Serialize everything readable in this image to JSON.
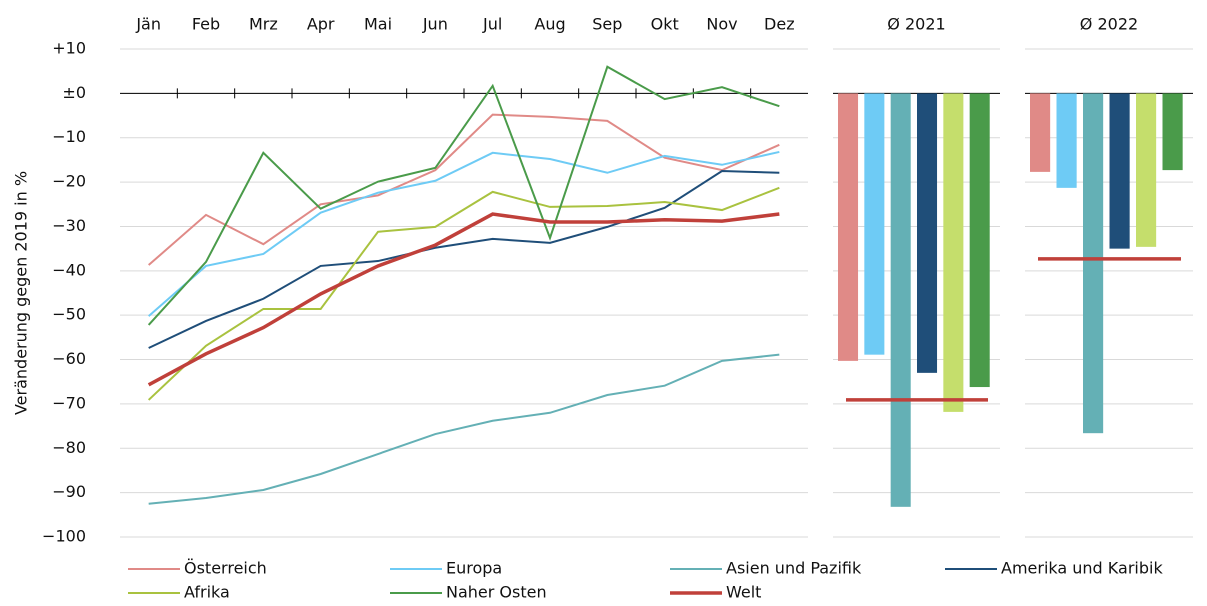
{
  "chart_data": [
    {
      "type": "line",
      "y_label": "Veränderung gegen 2019 in %",
      "categories": [
        "Jän",
        "Feb",
        "Mrz",
        "Apr",
        "Mai",
        "Jun",
        "Jul",
        "Aug",
        "Sep",
        "Okt",
        "Nov",
        "Dez"
      ],
      "ylim": [
        -100,
        10
      ],
      "yticks": [
        {
          "value": 10,
          "label": "+10"
        },
        {
          "value": 0,
          "label": "±0"
        },
        {
          "value": -10,
          "label": "−10"
        },
        {
          "value": -20,
          "label": "−20"
        },
        {
          "value": -30,
          "label": "−30"
        },
        {
          "value": -40,
          "label": "−40"
        },
        {
          "value": -50,
          "label": "−50"
        },
        {
          "value": -60,
          "label": "−60"
        },
        {
          "value": -70,
          "label": "−70"
        },
        {
          "value": -80,
          "label": "−80"
        },
        {
          "value": -90,
          "label": "−90"
        },
        {
          "value": -100,
          "label": "−100"
        }
      ],
      "grid": true,
      "series": [
        {
          "name": "Österreich",
          "color": "#e08a87",
          "values": [
            -38.7,
            -27.4,
            -34,
            -25,
            -23,
            -17.3,
            -4.8,
            -5.3,
            -6.2,
            -14.5,
            -17.3,
            -11.6
          ]
        },
        {
          "name": "Europa",
          "color": "#6ecbf5",
          "values": [
            -50.2,
            -38.9,
            -36.2,
            -26.9,
            -22.4,
            -19.7,
            -13.4,
            -14.8,
            -17.9,
            -14.1,
            -16.1,
            -13.2
          ]
        },
        {
          "name": "Asien und Pazifik",
          "color": "#64b0b5",
          "values": [
            -92.5,
            -91.2,
            -89.4,
            -85.8,
            -81.3,
            -76.8,
            -73.8,
            -72,
            -68,
            -65.9,
            -60.3,
            -58.9
          ]
        },
        {
          "name": "Amerika und Karibik",
          "color": "#1f4e79",
          "values": [
            -57.4,
            -51.3,
            -46.3,
            -38.9,
            -37.8,
            -34.8,
            -32.8,
            -33.7,
            -30.1,
            -25.8,
            -17.5,
            -17.9
          ]
        },
        {
          "name": "Afrika",
          "color": "#a9c23f",
          "values": [
            -69.1,
            -56.9,
            -48.6,
            -48.6,
            -31.2,
            -30.1,
            -22.2,
            -25.6,
            -25.4,
            -24.5,
            -26.3,
            -21.3
          ]
        },
        {
          "name": "Naher Osten",
          "color": "#4a9b4a",
          "values": [
            -52.2,
            -38,
            -13.4,
            -26,
            -19.9,
            -16.8,
            1.7,
            -32.6,
            6,
            -1.3,
            1.4,
            -2.9
          ]
        },
        {
          "name": "Welt",
          "color": "#c0403a",
          "values": [
            -65.7,
            -58.7,
            -52.8,
            -45.2,
            -38.9,
            -34.2,
            -27.2,
            -29,
            -29,
            -28.5,
            -28.8,
            -27.2
          ]
        }
      ]
    },
    {
      "type": "bar",
      "title": "Ø 2021",
      "values": [
        -60.3,
        -58.9,
        -93.2,
        -63,
        -71.8,
        -66.2
      ],
      "colors": [
        "#e08a87",
        "#6ecbf5",
        "#64b0b5",
        "#1f4e79",
        "#c5de6c",
        "#4a9b4a"
      ],
      "reference": -69.1,
      "reference_color": "#c0403a"
    },
    {
      "type": "bar",
      "title": "Ø 2022",
      "values": [
        -17.7,
        -21.3,
        -76.6,
        -35,
        -34.6,
        -17.3
      ],
      "colors": [
        "#e08a87",
        "#6ecbf5",
        "#64b0b5",
        "#1f4e79",
        "#c5de6c",
        "#4a9b4a"
      ],
      "reference": -37.3,
      "reference_color": "#c0403a"
    }
  ]
}
